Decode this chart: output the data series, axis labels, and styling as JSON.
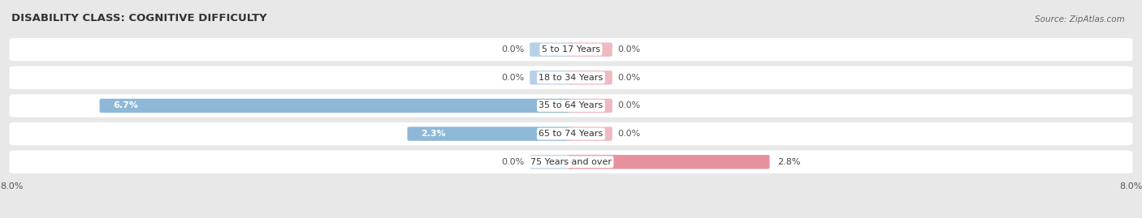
{
  "title": "DISABILITY CLASS: COGNITIVE DIFFICULTY",
  "source": "Source: ZipAtlas.com",
  "categories": [
    "5 to 17 Years",
    "18 to 34 Years",
    "35 to 64 Years",
    "65 to 74 Years",
    "75 Years and over"
  ],
  "male_values": [
    0.0,
    0.0,
    6.7,
    2.3,
    0.0
  ],
  "female_values": [
    0.0,
    0.0,
    0.0,
    0.0,
    2.8
  ],
  "male_color": "#8eb8d8",
  "female_color": "#e8919e",
  "male_stub_color": "#b8d0e8",
  "female_stub_color": "#f0b8c0",
  "x_max": 8.0,
  "x_min": -8.0,
  "bg_color": "#e8e8e8",
  "row_bg_color": "#f2f2f2",
  "title_fontsize": 9.5,
  "label_fontsize": 8,
  "tick_fontsize": 8,
  "source_fontsize": 7.5,
  "stub_size": 0.55
}
